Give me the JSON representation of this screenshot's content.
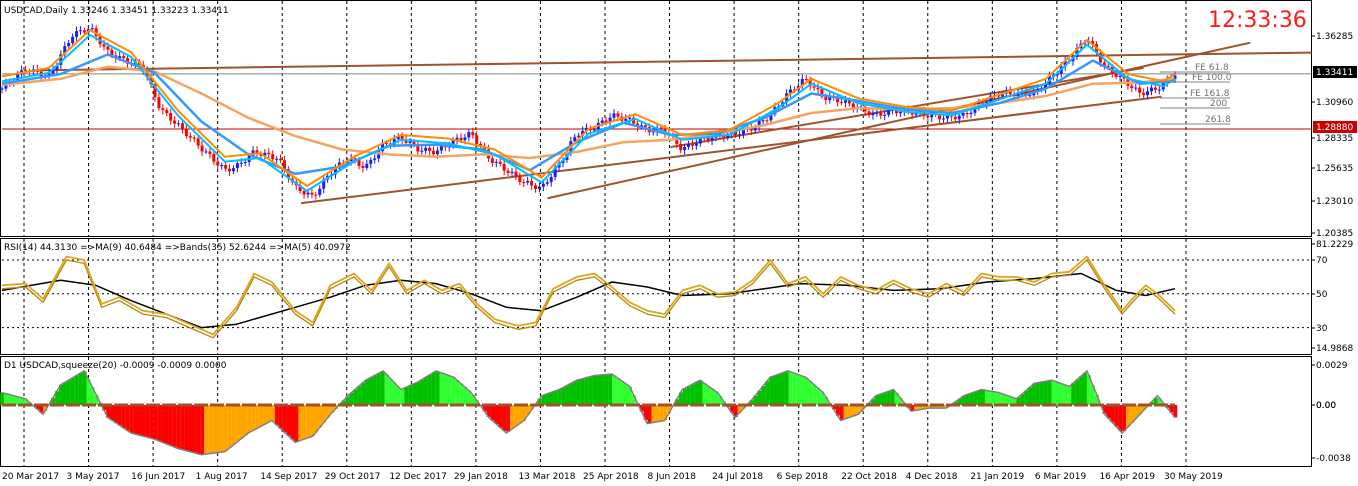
{
  "clock": "12:33:36",
  "colors": {
    "background": "#ffffff",
    "frame": "#000000",
    "grid": "#000000",
    "bull_candle": "#1a1aff",
    "bear_candle": "#ff0000",
    "ma_fast": "#00bfff",
    "ma_mid": "#3399ff",
    "ma_slow": "#f4a460",
    "ma_orange": "#ff8c00",
    "trendline": "#a0522d",
    "rsi": "#daa520",
    "rsi_ma": "#000000",
    "squeeze_up": "#00c000",
    "squeeze_up_light": "#32ff32",
    "squeeze_down": "#ff0000",
    "squeeze_down_light": "#ffa500",
    "hline_gray": "#808080",
    "hline_red": "#c00000",
    "price_tag": "#000000",
    "level_tag": "#cc0000"
  },
  "chart_data": [
    {
      "type": "candlestick",
      "title": "USDCAD,Daily  1.33246 1.33451 1.33223 1.33411",
      "ylim": [
        1.2018,
        1.3816
      ],
      "y_ticks": [
        "1.36285",
        "1.33411",
        "1.30960",
        "1.28880",
        "1.28335",
        "1.25635",
        "1.23010",
        "1.20385"
      ],
      "price_tag": "1.33411",
      "level_tag": "1.28880",
      "current_price": 1.33411,
      "level": 1.2888,
      "fib_labels": [
        "FE 61.8",
        "FE 100.0",
        "FE 161.8",
        "200",
        "261.8"
      ],
      "x_labels": [
        "20 Mar 2017",
        "3 May 2017",
        "16 Jun 2017",
        "1 Aug 2017",
        "14 Sep 2017",
        "29 Oct 2017",
        "12 Dec 2017",
        "29 Jan 2018",
        "13 Mar 2018",
        "25 Apr 2018",
        "8 Jun 2018",
        "24 Jul 2018",
        "6 Sep 2018",
        "22 Oct 2018",
        "4 Dec 2018",
        "21 Jan 2019",
        "6 Mar 2019",
        "16 Apr 2019",
        "30 May 2019"
      ],
      "close_path": [
        [
          0,
          1.322
        ],
        [
          0.02,
          1.338
        ],
        [
          0.04,
          1.332
        ],
        [
          0.06,
          1.366
        ],
        [
          0.075,
          1.372
        ],
        [
          0.09,
          1.352
        ],
        [
          0.105,
          1.345
        ],
        [
          0.12,
          1.34
        ],
        [
          0.135,
          1.305
        ],
        [
          0.15,
          1.292
        ],
        [
          0.17,
          1.273
        ],
        [
          0.19,
          1.255
        ],
        [
          0.2,
          1.258
        ],
        [
          0.215,
          1.27
        ],
        [
          0.235,
          1.265
        ],
        [
          0.25,
          1.241
        ],
        [
          0.265,
          1.233
        ],
        [
          0.28,
          1.253
        ],
        [
          0.295,
          1.265
        ],
        [
          0.31,
          1.257
        ],
        [
          0.325,
          1.276
        ],
        [
          0.34,
          1.282
        ],
        [
          0.355,
          1.272
        ],
        [
          0.37,
          1.27
        ],
        [
          0.385,
          1.279
        ],
        [
          0.4,
          1.285
        ],
        [
          0.415,
          1.265
        ],
        [
          0.43,
          1.255
        ],
        [
          0.445,
          1.245
        ],
        [
          0.46,
          1.24
        ],
        [
          0.475,
          1.26
        ],
        [
          0.49,
          1.285
        ],
        [
          0.505,
          1.29
        ],
        [
          0.52,
          1.3
        ],
        [
          0.535,
          1.296
        ],
        [
          0.55,
          1.288
        ],
        [
          0.565,
          1.288
        ],
        [
          0.58,
          1.272
        ],
        [
          0.595,
          1.28
        ],
        [
          0.61,
          1.283
        ],
        [
          0.625,
          1.285
        ],
        [
          0.64,
          1.29
        ],
        [
          0.655,
          1.3
        ],
        [
          0.67,
          1.318
        ],
        [
          0.685,
          1.33
        ],
        [
          0.7,
          1.315
        ],
        [
          0.715,
          1.312
        ],
        [
          0.73,
          1.306
        ],
        [
          0.745,
          1.3
        ],
        [
          0.76,
          1.304
        ],
        [
          0.775,
          1.303
        ],
        [
          0.79,
          1.3
        ],
        [
          0.805,
          1.298
        ],
        [
          0.82,
          1.3
        ],
        [
          0.835,
          1.31
        ],
        [
          0.85,
          1.318
        ],
        [
          0.865,
          1.318
        ],
        [
          0.88,
          1.318
        ],
        [
          0.895,
          1.332
        ],
        [
          0.91,
          1.346
        ],
        [
          0.925,
          1.364
        ],
        [
          0.94,
          1.34
        ],
        [
          0.955,
          1.33
        ],
        [
          0.97,
          1.318
        ],
        [
          0.985,
          1.322
        ],
        [
          1.0,
          1.334
        ]
      ],
      "x_domain_note": "",
      "ma_fast_path": [
        [
          0,
          1.328
        ],
        [
          0.04,
          1.335
        ],
        [
          0.075,
          1.366
        ],
        [
          0.11,
          1.348
        ],
        [
          0.15,
          1.3
        ],
        [
          0.19,
          1.262
        ],
        [
          0.22,
          1.265
        ],
        [
          0.26,
          1.238
        ],
        [
          0.3,
          1.262
        ],
        [
          0.34,
          1.28
        ],
        [
          0.38,
          1.277
        ],
        [
          0.42,
          1.268
        ],
        [
          0.46,
          1.245
        ],
        [
          0.5,
          1.285
        ],
        [
          0.54,
          1.297
        ],
        [
          0.58,
          1.28
        ],
        [
          0.62,
          1.284
        ],
        [
          0.66,
          1.305
        ],
        [
          0.69,
          1.326
        ],
        [
          0.73,
          1.31
        ],
        [
          0.77,
          1.303
        ],
        [
          0.81,
          1.3
        ],
        [
          0.85,
          1.313
        ],
        [
          0.89,
          1.326
        ],
        [
          0.925,
          1.358
        ],
        [
          0.96,
          1.33
        ],
        [
          0.99,
          1.324
        ],
        [
          1.0,
          1.33
        ]
      ],
      "ma_mid_path": [
        [
          0,
          1.326
        ],
        [
          0.05,
          1.334
        ],
        [
          0.09,
          1.35
        ],
        [
          0.13,
          1.335
        ],
        [
          0.17,
          1.295
        ],
        [
          0.21,
          1.268
        ],
        [
          0.25,
          1.252
        ],
        [
          0.29,
          1.258
        ],
        [
          0.33,
          1.275
        ],
        [
          0.37,
          1.276
        ],
        [
          0.41,
          1.272
        ],
        [
          0.45,
          1.255
        ],
        [
          0.49,
          1.278
        ],
        [
          0.53,
          1.294
        ],
        [
          0.57,
          1.284
        ],
        [
          0.61,
          1.285
        ],
        [
          0.65,
          1.298
        ],
        [
          0.69,
          1.318
        ],
        [
          0.73,
          1.312
        ],
        [
          0.77,
          1.305
        ],
        [
          0.81,
          1.302
        ],
        [
          0.85,
          1.31
        ],
        [
          0.89,
          1.322
        ],
        [
          0.93,
          1.345
        ],
        [
          0.97,
          1.326
        ],
        [
          1.0,
          1.328
        ]
      ],
      "ma_slow_path": [
        [
          0,
          1.325
        ],
        [
          0.05,
          1.33
        ],
        [
          0.09,
          1.34
        ],
        [
          0.13,
          1.336
        ],
        [
          0.17,
          1.318
        ],
        [
          0.21,
          1.298
        ],
        [
          0.25,
          1.283
        ],
        [
          0.29,
          1.272
        ],
        [
          0.33,
          1.268
        ],
        [
          0.37,
          1.266
        ],
        [
          0.41,
          1.268
        ],
        [
          0.45,
          1.265
        ],
        [
          0.49,
          1.27
        ],
        [
          0.53,
          1.278
        ],
        [
          0.57,
          1.28
        ],
        [
          0.61,
          1.285
        ],
        [
          0.65,
          1.292
        ],
        [
          0.69,
          1.302
        ],
        [
          0.73,
          1.306
        ],
        [
          0.77,
          1.305
        ],
        [
          0.81,
          1.306
        ],
        [
          0.85,
          1.31
        ],
        [
          0.89,
          1.316
        ],
        [
          0.93,
          1.326
        ],
        [
          0.97,
          1.327
        ],
        [
          1.0,
          1.33
        ]
      ],
      "trendlines": [
        [
          [
            0.255,
            1.228
          ],
          [
            0.91,
            1.306
          ]
        ],
        [
          [
            0.465,
            1.232
          ],
          [
            1.0,
            1.346
          ]
        ],
        [
          [
            0.57,
            1.274
          ],
          [
            0.93,
            1.332
          ]
        ],
        [
          [
            0.03,
            1.337
          ],
          [
            1.0,
            1.35
          ]
        ]
      ]
    },
    {
      "type": "line",
      "title": "RSI(14) 44.3130  =>MA(9) 40.6484  =>Bands(35) 52.6244  =>MA(5) 40.0972",
      "ylim": [
        14.9868,
        81.2229
      ],
      "y_ticks": [
        "81.2229",
        "70",
        "50",
        "30",
        "14.9868"
      ],
      "levels": [
        70,
        50,
        30
      ],
      "rsi": [
        [
          0,
          55
        ],
        [
          0.02,
          56
        ],
        [
          0.035,
          47
        ],
        [
          0.055,
          72
        ],
        [
          0.07,
          70
        ],
        [
          0.085,
          44
        ],
        [
          0.1,
          48
        ],
        [
          0.12,
          40
        ],
        [
          0.14,
          38
        ],
        [
          0.16,
          32
        ],
        [
          0.18,
          26
        ],
        [
          0.2,
          42
        ],
        [
          0.215,
          62
        ],
        [
          0.23,
          57
        ],
        [
          0.25,
          40
        ],
        [
          0.265,
          33
        ],
        [
          0.28,
          55
        ],
        [
          0.3,
          62
        ],
        [
          0.315,
          52
        ],
        [
          0.33,
          68
        ],
        [
          0.345,
          52
        ],
        [
          0.36,
          58
        ],
        [
          0.375,
          52
        ],
        [
          0.39,
          56
        ],
        [
          0.405,
          44
        ],
        [
          0.42,
          35
        ],
        [
          0.44,
          31
        ],
        [
          0.455,
          33
        ],
        [
          0.47,
          53
        ],
        [
          0.49,
          60
        ],
        [
          0.505,
          62
        ],
        [
          0.52,
          54
        ],
        [
          0.535,
          45
        ],
        [
          0.55,
          40
        ],
        [
          0.565,
          38
        ],
        [
          0.58,
          52
        ],
        [
          0.595,
          55
        ],
        [
          0.61,
          50
        ],
        [
          0.625,
          51
        ],
        [
          0.64,
          58
        ],
        [
          0.655,
          70
        ],
        [
          0.67,
          56
        ],
        [
          0.685,
          60
        ],
        [
          0.7,
          50
        ],
        [
          0.715,
          60
        ],
        [
          0.73,
          55
        ],
        [
          0.745,
          52
        ],
        [
          0.76,
          58
        ],
        [
          0.775,
          53
        ],
        [
          0.79,
          50
        ],
        [
          0.805,
          56
        ],
        [
          0.82,
          51
        ],
        [
          0.835,
          62
        ],
        [
          0.85,
          60
        ],
        [
          0.865,
          60
        ],
        [
          0.88,
          57
        ],
        [
          0.895,
          62
        ],
        [
          0.91,
          63
        ],
        [
          0.925,
          72
        ],
        [
          0.94,
          55
        ],
        [
          0.955,
          40
        ],
        [
          0.965,
          48
        ],
        [
          0.975,
          55
        ],
        [
          0.985,
          50
        ],
        [
          1.0,
          40
        ]
      ],
      "rsi_ma": [
        [
          0,
          52
        ],
        [
          0.05,
          58
        ],
        [
          0.08,
          55
        ],
        [
          0.11,
          46
        ],
        [
          0.14,
          38
        ],
        [
          0.17,
          30
        ],
        [
          0.2,
          32
        ],
        [
          0.24,
          40
        ],
        [
          0.28,
          48
        ],
        [
          0.31,
          55
        ],
        [
          0.34,
          58
        ],
        [
          0.37,
          56
        ],
        [
          0.4,
          50
        ],
        [
          0.43,
          42
        ],
        [
          0.46,
          40
        ],
        [
          0.49,
          48
        ],
        [
          0.52,
          57
        ],
        [
          0.55,
          54
        ],
        [
          0.58,
          49
        ],
        [
          0.62,
          50
        ],
        [
          0.65,
          53
        ],
        [
          0.68,
          56
        ],
        [
          0.72,
          55
        ],
        [
          0.76,
          52
        ],
        [
          0.8,
          53
        ],
        [
          0.84,
          57
        ],
        [
          0.88,
          59
        ],
        [
          0.92,
          62
        ],
        [
          0.95,
          52
        ],
        [
          0.975,
          49
        ],
        [
          1.0,
          53
        ]
      ]
    },
    {
      "type": "bar",
      "title": "D1 USDCAD,squeeze(20) -0.0009 -0.0009 0.0000",
      "ylim": [
        -0.0038,
        0.0029
      ],
      "y_ticks": [
        "0.0029",
        "0.00",
        "0.00",
        "-0.0038"
      ],
      "histogram": [
        [
          0,
          0.0008
        ],
        [
          0.02,
          0.0004
        ],
        [
          0.035,
          -0.0006
        ],
        [
          0.05,
          0.0013
        ],
        [
          0.07,
          0.0022
        ],
        [
          0.09,
          -0.0008
        ],
        [
          0.11,
          -0.0018
        ],
        [
          0.13,
          -0.0022
        ],
        [
          0.15,
          -0.0028
        ],
        [
          0.17,
          -0.0032
        ],
        [
          0.19,
          -0.003
        ],
        [
          0.21,
          -0.0018
        ],
        [
          0.23,
          -0.001
        ],
        [
          0.25,
          -0.0024
        ],
        [
          0.265,
          -0.002
        ],
        [
          0.28,
          -0.0006
        ],
        [
          0.295,
          0.0006
        ],
        [
          0.31,
          0.0016
        ],
        [
          0.325,
          0.0022
        ],
        [
          0.34,
          0.001
        ],
        [
          0.355,
          0.0015
        ],
        [
          0.37,
          0.0022
        ],
        [
          0.385,
          0.0018
        ],
        [
          0.4,
          0.0008
        ],
        [
          0.415,
          -0.0008
        ],
        [
          0.43,
          -0.0018
        ],
        [
          0.445,
          -0.001
        ],
        [
          0.46,
          0.0006
        ],
        [
          0.475,
          0.001
        ],
        [
          0.49,
          0.0016
        ],
        [
          0.505,
          0.0019
        ],
        [
          0.52,
          0.002
        ],
        [
          0.535,
          0.0012
        ],
        [
          0.55,
          -0.0012
        ],
        [
          0.565,
          -0.001
        ],
        [
          0.58,
          0.001
        ],
        [
          0.595,
          0.0016
        ],
        [
          0.61,
          0.0008
        ],
        [
          0.625,
          -0.0008
        ],
        [
          0.64,
          0.0004
        ],
        [
          0.655,
          0.0018
        ],
        [
          0.67,
          0.0022
        ],
        [
          0.685,
          0.0018
        ],
        [
          0.7,
          0.0008
        ],
        [
          0.715,
          -0.001
        ],
        [
          0.73,
          -0.0006
        ],
        [
          0.745,
          0.0006
        ],
        [
          0.76,
          0.001
        ],
        [
          0.775,
          -0.0004
        ],
        [
          0.79,
          -0.0002
        ],
        [
          0.805,
          -0.0002
        ],
        [
          0.82,
          0.0006
        ],
        [
          0.835,
          0.001
        ],
        [
          0.85,
          0.0008
        ],
        [
          0.865,
          0.0004
        ],
        [
          0.88,
          0.0014
        ],
        [
          0.895,
          0.0016
        ],
        [
          0.91,
          0.0012
        ],
        [
          0.925,
          0.0022
        ],
        [
          0.94,
          -0.0006
        ],
        [
          0.955,
          -0.0018
        ],
        [
          0.97,
          -0.0006
        ],
        [
          0.985,
          0.0006
        ],
        [
          1.0,
          -0.0008
        ]
      ]
    }
  ]
}
